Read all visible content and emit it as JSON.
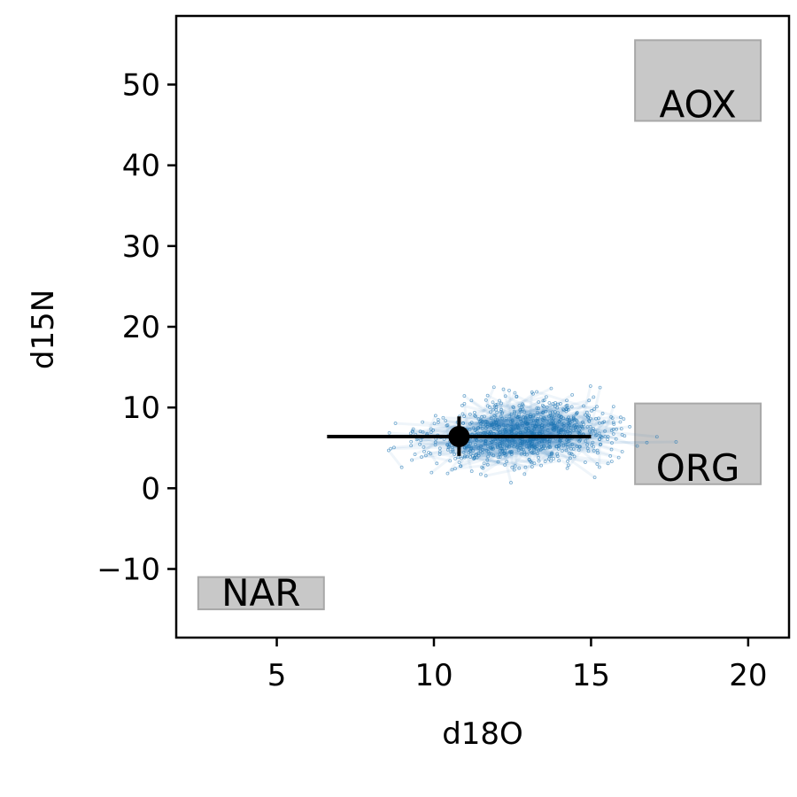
{
  "chart_data": {
    "type": "scatter",
    "xlabel": "d18O",
    "ylabel": "d15N",
    "xlim": [
      1.8,
      21.3
    ],
    "ylim": [
      -18.5,
      58.5
    ],
    "xticks": [
      5,
      10,
      15,
      20
    ],
    "yticks": [
      -10,
      0,
      10,
      20,
      30,
      40,
      50
    ],
    "xtick_labels": [
      "5",
      "10",
      "15",
      "20"
    ],
    "ytick_labels": [
      "−10",
      "0",
      "10",
      "20",
      "30",
      "40",
      "50"
    ],
    "grid": false,
    "point_color": "#1f77b4",
    "point_cloud": {
      "approx_points": 900,
      "x_range": [
        7.6,
        18.4
      ],
      "y_range": [
        -2.7,
        16.4
      ],
      "x_center": 12.8,
      "y_center": 6.8
    },
    "summary_point": {
      "x": 10.8,
      "y": 6.4,
      "x_err": [
        6.6,
        15.0
      ],
      "y_err": [
        4.0,
        8.9
      ],
      "color": "#000000"
    },
    "source_boxes": [
      {
        "label": "AOX",
        "x": [
          16.4,
          20.4
        ],
        "y": [
          45.5,
          55.5
        ]
      },
      {
        "label": "ORG",
        "x": [
          16.4,
          20.4
        ],
        "y": [
          0.5,
          10.5
        ]
      },
      {
        "label": "NAR",
        "x": [
          2.5,
          6.5
        ],
        "y": [
          -15.0,
          -11.0
        ]
      }
    ],
    "box_fill": "#c8c8c8",
    "box_edge": "#a8a8a8"
  }
}
